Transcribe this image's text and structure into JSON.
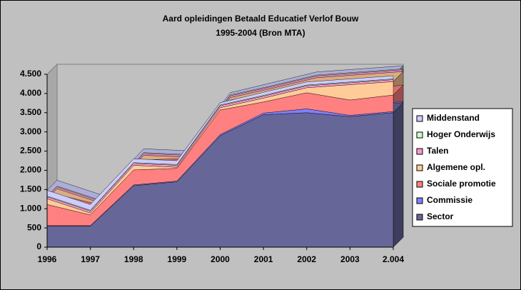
{
  "chart_data": {
    "type": "area",
    "title": "Aard opleidingen Betaald Educatief Verlof Bouw",
    "subtitle": "1995-2004 (Bron MTA)",
    "stacked": true,
    "categories": [
      "1996",
      "1997",
      "1998",
      "1999",
      "2000",
      "2001",
      "2002",
      "2003",
      "2.004"
    ],
    "series": [
      {
        "name": "Sector",
        "color": "#666699",
        "values": [
          550,
          550,
          1600,
          1700,
          2900,
          3450,
          3500,
          3400,
          3500
        ]
      },
      {
        "name": "Commissie",
        "color": "#8080ff",
        "values": [
          10,
          10,
          20,
          20,
          30,
          40,
          100,
          30,
          30
        ]
      },
      {
        "name": "Sociale promotie",
        "color": "#ff8080",
        "values": [
          550,
          280,
          390,
          330,
          640,
          290,
          420,
          400,
          430
        ]
      },
      {
        "name": "Algemene opl.",
        "color": "#ffcc99",
        "values": [
          150,
          50,
          120,
          30,
          60,
          100,
          130,
          400,
          350
        ]
      },
      {
        "name": "Talen",
        "color": "#ff99cc",
        "values": [
          50,
          50,
          50,
          50,
          50,
          50,
          50,
          50,
          50
        ]
      },
      {
        "name": "Hoger Onderwijs",
        "color": "#ccffcc",
        "values": [
          20,
          20,
          20,
          20,
          20,
          20,
          20,
          20,
          20
        ]
      },
      {
        "name": "Middenstand",
        "color": "#ccccff",
        "values": [
          150,
          150,
          100,
          100,
          60,
          80,
          80,
          80,
          80
        ]
      }
    ],
    "ylim": [
      0,
      4500
    ],
    "yticks": [
      0,
      500,
      {
        "value": 1000,
        "label": "1.000"
      },
      {
        "value": 1500,
        "label": "1.500"
      },
      {
        "value": 2000,
        "label": "2.000"
      },
      {
        "value": 2500,
        "label": "2.500"
      },
      {
        "value": 3000,
        "label": "3.000"
      },
      {
        "value": 3500,
        "label": "3.500"
      },
      {
        "value": 4000,
        "label": "4.000"
      },
      {
        "value": 4500,
        "label": "4.500"
      }
    ],
    "legend": "right"
  }
}
